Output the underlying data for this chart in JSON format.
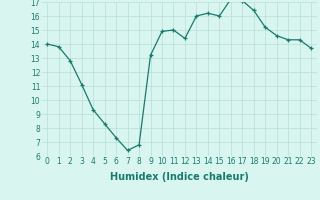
{
  "x": [
    0,
    1,
    2,
    3,
    4,
    5,
    6,
    7,
    8,
    9,
    10,
    11,
    12,
    13,
    14,
    15,
    16,
    17,
    18,
    19,
    20,
    21,
    22,
    23
  ],
  "y": [
    14.0,
    13.8,
    12.8,
    11.1,
    9.3,
    8.3,
    7.3,
    6.4,
    6.8,
    13.2,
    14.9,
    15.0,
    14.4,
    16.0,
    16.2,
    16.0,
    17.2,
    17.1,
    16.4,
    15.2,
    14.6,
    14.3,
    14.3,
    13.7
  ],
  "xlabel": "Humidex (Indice chaleur)",
  "ylim": [
    6,
    17
  ],
  "xlim_min": -0.5,
  "xlim_max": 23.5,
  "yticks": [
    6,
    7,
    8,
    9,
    10,
    11,
    12,
    13,
    14,
    15,
    16,
    17
  ],
  "xticks": [
    0,
    1,
    2,
    3,
    4,
    5,
    6,
    7,
    8,
    9,
    10,
    11,
    12,
    13,
    14,
    15,
    16,
    17,
    18,
    19,
    20,
    21,
    22,
    23
  ],
  "line_color": "#1a7a6e",
  "marker": "+",
  "bg_color": "#d8f5f0",
  "grid_color": "#b8ddd8",
  "tick_label_fontsize": 5.5,
  "xlabel_fontsize": 7
}
